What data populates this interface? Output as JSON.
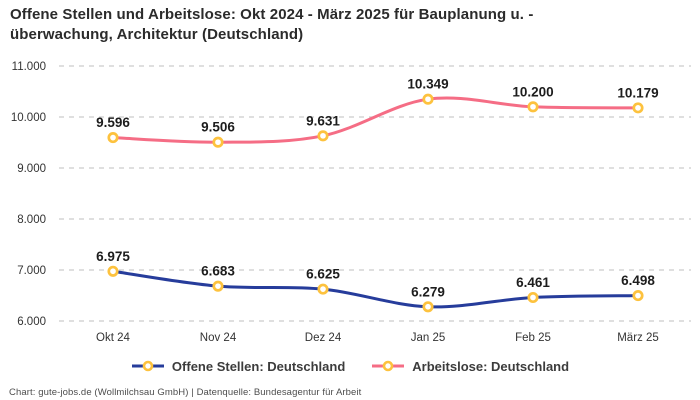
{
  "title": {
    "line1": "Offene Stellen und Arbeitslose: Okt 2024 - März 2025 für Bauplanung u. -",
    "line2": "überwachung, Architektur (Deutschland)"
  },
  "footer": {
    "text": "Chart: gute-jobs.de (Wollmilchsau GmbH) | Datenquelle: Bundesagentur für Arbeit"
  },
  "colors": {
    "background": "#ffffff",
    "title_text": "#2b2b2b",
    "data_label_text": "#1d1d1d",
    "axis_text": "#333333",
    "legend_text": "#3c3c3c",
    "footer_text": "#4d4d4d",
    "grid": "#cccccc",
    "series_offene_stellen": "#263c9b",
    "series_arbeitslose": "#f56d85",
    "marker_stroke": "#fdc23e",
    "marker_fill": "#ffffff"
  },
  "chart_data": {
    "type": "line",
    "title": "Offene Stellen und Arbeitslose: Okt 2024 - März 2025 für Bauplanung u. -überwachung, Architektur (Deutschland)",
    "categories": [
      "Okt 24",
      "Nov 24",
      "Dez 24",
      "Jan 25",
      "Feb 25",
      "März 25"
    ],
    "series": [
      {
        "name": "Offene Stellen: Deutschland",
        "values": [
          6975,
          6683,
          6625,
          6279,
          6461,
          6498
        ],
        "labels": [
          "6.975",
          "6.683",
          "6.625",
          "6.279",
          "6.461",
          "6.498"
        ],
        "color": "#263c9b"
      },
      {
        "name": "Arbeitslose: Deutschland",
        "values": [
          9596,
          9506,
          9631,
          10349,
          10200,
          10179
        ],
        "labels": [
          "9.596",
          "9.506",
          "9.631",
          "10.349",
          "10.200",
          "10.179"
        ],
        "color": "#f56d85"
      }
    ],
    "y_ticks": [
      6000,
      7000,
      8000,
      9000,
      10000,
      11000
    ],
    "y_tick_labels": [
      "6.000",
      "7.000",
      "8.000",
      "9.000",
      "10.000",
      "11.000"
    ],
    "ylim": [
      6000,
      11000
    ],
    "xlabel": "",
    "ylabel": "",
    "grid": "horizontal-dashed",
    "legend_position": "bottom",
    "marker": {
      "shape": "circle",
      "fill": "#ffffff",
      "stroke": "#fdc23e"
    }
  }
}
